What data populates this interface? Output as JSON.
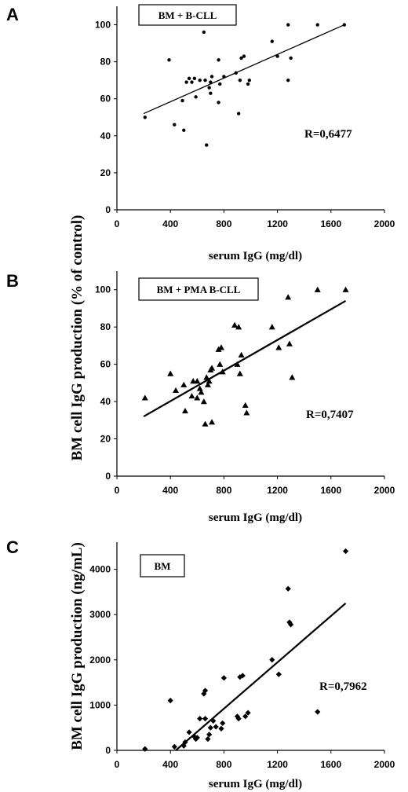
{
  "shared_ylabel": "BM cell IgG production (% of control)",
  "chart_data": [
    {
      "panel": "A",
      "type": "scatter",
      "marker": "circle",
      "legend": "BM + B-CLL",
      "r_label": "R=0,6477",
      "xlabel": "serum IgG (mg/dl)",
      "ylabel": "",
      "xlim": [
        0,
        2000
      ],
      "ylim": [
        0,
        110
      ],
      "xticks": [
        0,
        400,
        800,
        1200,
        1600,
        2000
      ],
      "yticks": [
        0,
        20,
        40,
        60,
        80,
        100
      ],
      "trend": {
        "x": [
          200,
          1700
        ],
        "y": [
          52,
          100
        ]
      },
      "points": [
        [
          210,
          50
        ],
        [
          390,
          81
        ],
        [
          430,
          46
        ],
        [
          490,
          59
        ],
        [
          500,
          43
        ],
        [
          520,
          69
        ],
        [
          540,
          71
        ],
        [
          560,
          69
        ],
        [
          580,
          71
        ],
        [
          590,
          61
        ],
        [
          620,
          70
        ],
        [
          650,
          96
        ],
        [
          660,
          70
        ],
        [
          670,
          35
        ],
        [
          690,
          66
        ],
        [
          700,
          69
        ],
        [
          700,
          63
        ],
        [
          710,
          72
        ],
        [
          760,
          81
        ],
        [
          760,
          58
        ],
        [
          770,
          68
        ],
        [
          800,
          72
        ],
        [
          890,
          74
        ],
        [
          910,
          52
        ],
        [
          920,
          70
        ],
        [
          930,
          82
        ],
        [
          950,
          83
        ],
        [
          980,
          68
        ],
        [
          990,
          70
        ],
        [
          1160,
          91
        ],
        [
          1200,
          83
        ],
        [
          1280,
          70
        ],
        [
          1300,
          82
        ],
        [
          1280,
          100
        ],
        [
          1500,
          100
        ],
        [
          1700,
          100
        ]
      ]
    },
    {
      "panel": "B",
      "type": "scatter",
      "marker": "triangle",
      "legend": "BM + PMA B-CLL",
      "r_label": "R=0,7407",
      "xlabel": "serum IgG (mg/dl)",
      "ylabel": "",
      "xlim": [
        0,
        2000
      ],
      "ylim": [
        0,
        110
      ],
      "xticks": [
        0,
        400,
        800,
        1200,
        1600,
        2000
      ],
      "yticks": [
        0,
        20,
        40,
        60,
        80,
        100
      ],
      "trend": {
        "x": [
          200,
          1710
        ],
        "y": [
          32,
          94
        ]
      },
      "points": [
        [
          210,
          42
        ],
        [
          400,
          55
        ],
        [
          440,
          46
        ],
        [
          500,
          49
        ],
        [
          510,
          35
        ],
        [
          560,
          43
        ],
        [
          570,
          51
        ],
        [
          600,
          51
        ],
        [
          600,
          42
        ],
        [
          620,
          47
        ],
        [
          630,
          45
        ],
        [
          650,
          40
        ],
        [
          660,
          28
        ],
        [
          670,
          53
        ],
        [
          680,
          49
        ],
        [
          690,
          51
        ],
        [
          700,
          57
        ],
        [
          710,
          58
        ],
        [
          710,
          29
        ],
        [
          760,
          68
        ],
        [
          770,
          60
        ],
        [
          780,
          69
        ],
        [
          790,
          56
        ],
        [
          880,
          81
        ],
        [
          900,
          60
        ],
        [
          910,
          80
        ],
        [
          920,
          55
        ],
        [
          930,
          65
        ],
        [
          960,
          38
        ],
        [
          970,
          34
        ],
        [
          1160,
          80
        ],
        [
          1210,
          69
        ],
        [
          1280,
          96
        ],
        [
          1290,
          71
        ],
        [
          1310,
          53
        ],
        [
          1500,
          100
        ],
        [
          1710,
          100
        ]
      ]
    },
    {
      "panel": "C",
      "type": "scatter",
      "marker": "diamond",
      "legend": "BM",
      "r_label": "R=0,7962",
      "xlabel": "serum IgG (mg/dl)",
      "ylabel": "BM cell IgG production (ng/mL)",
      "xlim": [
        0,
        2000
      ],
      "ylim": [
        0,
        4600
      ],
      "xticks": [
        0,
        400,
        800,
        1200,
        1600,
        2000
      ],
      "yticks": [
        0,
        1000,
        2000,
        3000,
        4000
      ],
      "trend": {
        "x": [
          440,
          1710
        ],
        "y": [
          0,
          3250
        ]
      },
      "points": [
        [
          210,
          30
        ],
        [
          400,
          1100
        ],
        [
          430,
          80
        ],
        [
          500,
          100
        ],
        [
          510,
          180
        ],
        [
          540,
          400
        ],
        [
          580,
          300
        ],
        [
          590,
          250
        ],
        [
          600,
          280
        ],
        [
          620,
          700
        ],
        [
          650,
          1250
        ],
        [
          660,
          1320
        ],
        [
          660,
          700
        ],
        [
          680,
          250
        ],
        [
          690,
          350
        ],
        [
          700,
          500
        ],
        [
          720,
          650
        ],
        [
          740,
          520
        ],
        [
          780,
          480
        ],
        [
          790,
          600
        ],
        [
          800,
          1600
        ],
        [
          900,
          750
        ],
        [
          910,
          700
        ],
        [
          920,
          1620
        ],
        [
          940,
          1650
        ],
        [
          960,
          750
        ],
        [
          980,
          830
        ],
        [
          1160,
          2000
        ],
        [
          1210,
          1680
        ],
        [
          1280,
          3570
        ],
        [
          1290,
          2830
        ],
        [
          1300,
          2780
        ],
        [
          1500,
          850
        ],
        [
          1710,
          4400
        ]
      ]
    }
  ]
}
